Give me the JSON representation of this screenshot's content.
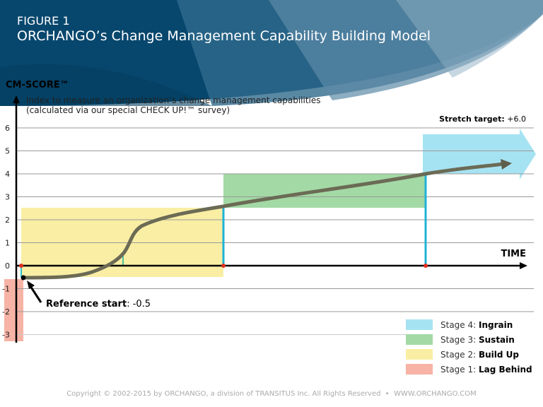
{
  "header": {
    "figure_label": "FIGURE 1",
    "title": "ORCHANGO’s Change Management Capability Building Model"
  },
  "axis": {
    "y_title": "CM-SCORE™",
    "y_desc_line1": "Index to measure an organization’s change management capabilities",
    "y_desc_line2": "(calculated via our special CHECK UP!™ survey)",
    "x_title": "TIME",
    "y_ticks": [
      "6",
      "5",
      "4",
      "3",
      "2",
      "1",
      "0",
      "-1",
      "-2",
      "-3"
    ]
  },
  "annotations": {
    "stretch_label": "Stretch target:",
    "stretch_value": " +6.0",
    "reference_label": "Reference start",
    "reference_value": ": -0.5"
  },
  "legend": [
    {
      "prefix": "Stage 4: ",
      "name": "Ingrain",
      "color": "#a6e3f2"
    },
    {
      "prefix": "Stage 3: ",
      "name": "Sustain",
      "color": "#a3d9a5"
    },
    {
      "prefix": "Stage 2: ",
      "name": "Build Up",
      "color": "#f9eea4"
    },
    {
      "prefix": "Stage 1: ",
      "name": "Lag Behind",
      "color": "#f6b3a6"
    }
  ],
  "footer": {
    "copyright": "Copyright © 2002-2015 by ORCHANGO, a division of TRANSITUS Inc. All Rights Reserved  •  WWW.ORCHANGO.COM"
  }
}
